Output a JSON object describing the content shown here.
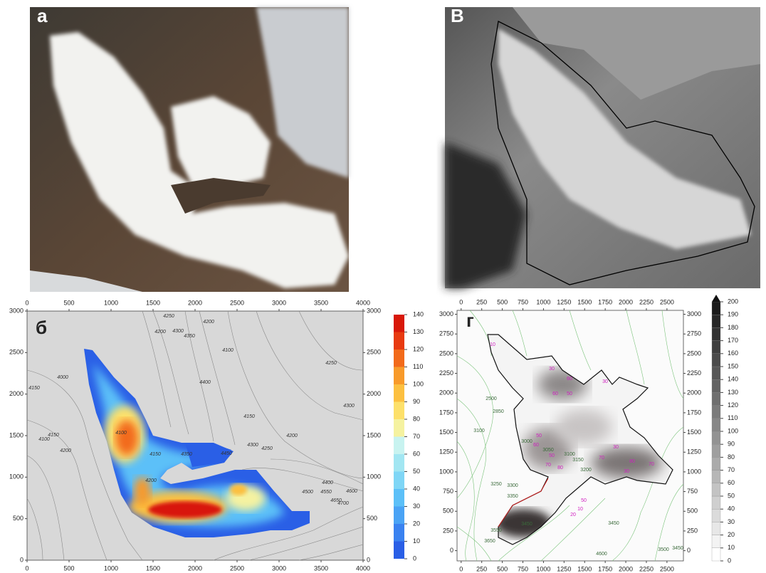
{
  "panels": [
    {
      "label": "а"
    },
    {
      "label": "б",
      "xlim": [
        0,
        4000
      ],
      "xticks": [
        0,
        500,
        1000,
        1500,
        2000,
        2500,
        3000,
        3500,
        4000
      ],
      "ylim": [
        0,
        3000
      ],
      "yticks": [
        0,
        500,
        1000,
        1500,
        2000,
        2500,
        3000
      ],
      "colorbar": {
        "lim": [
          0,
          140
        ],
        "ticks": [
          0,
          10,
          20,
          30,
          40,
          50,
          60,
          70,
          80,
          90,
          100,
          110,
          120,
          130,
          140
        ],
        "colors": [
          "#2a5fe6",
          "#3a82f0",
          "#4aa3f5",
          "#5cc0f8",
          "#7fd6f6",
          "#a2e6f2",
          "#c8f3f0",
          "#f5f2a0",
          "#fde06a",
          "#fcc040",
          "#f89a2a",
          "#f26a1a",
          "#e83a10",
          "#d81808"
        ]
      },
      "contour_labels": [
        "4250",
        "4200",
        "4200",
        "4300",
        "4350",
        "4100",
        "4400",
        "4250",
        "4000",
        "4150",
        "4300",
        "4150",
        "4100",
        "4150",
        "4200",
        "4100",
        "4150",
        "4200",
        "4350",
        "4450",
        "4300",
        "4250",
        "4200",
        "4400",
        "4500",
        "4550",
        "4650",
        "4600",
        "4700"
      ]
    },
    {
      "label": "В"
    },
    {
      "label": "г",
      "xlim": [
        -50,
        2700
      ],
      "xticks": [
        0,
        250,
        500,
        750,
        1000,
        1250,
        1500,
        1750,
        2000,
        2250,
        2500
      ],
      "ylim": [
        -130,
        3050
      ],
      "yticks": [
        0,
        250,
        500,
        750,
        1000,
        1250,
        1500,
        1750,
        2000,
        2250,
        2500,
        2750,
        3000
      ],
      "colorbar": {
        "lim": [
          0,
          200
        ],
        "ticks": [
          0,
          10,
          20,
          30,
          40,
          50,
          60,
          70,
          80,
          90,
          100,
          110,
          120,
          130,
          140,
          150,
          160,
          170,
          180,
          190,
          200
        ]
      },
      "contour_labels": [
        "2500",
        "2850",
        "3100",
        "3000",
        "3050",
        "3100",
        "3150",
        "3200",
        "3250",
        "3300",
        "3350",
        "3450",
        "3550",
        "3650",
        "3450",
        "4600",
        "3500",
        "3450"
      ],
      "thickness_labels": [
        "10",
        "30",
        "60",
        "30",
        "60",
        "50",
        "50",
        "60",
        "50",
        "70",
        "80",
        "30",
        "70",
        "80",
        "70",
        "30",
        "20",
        "10",
        "50"
      ]
    }
  ]
}
